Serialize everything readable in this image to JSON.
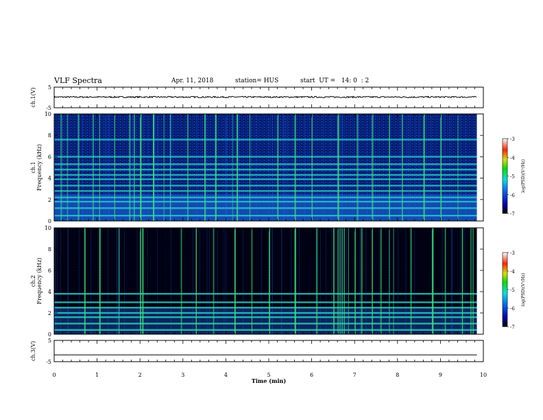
{
  "header": {
    "title": "VLF Spectra",
    "date": "Apr. 11, 2018",
    "station": "station= HUS",
    "start": "start  UT =   14: 0  : 2"
  },
  "chart_data": [
    {
      "type": "line",
      "panel": "ch1-waveform",
      "ylabel": "ch.1(V)",
      "yticks": [
        "5",
        "-5"
      ],
      "ylim": [
        -5,
        5
      ],
      "xlim": [
        0,
        9.85
      ],
      "series": [
        {
          "values_note_mean": 0.2,
          "noise_amplitude": 0.35
        }
      ]
    },
    {
      "type": "heatmap",
      "panel": "ch1-spectrogram",
      "ylabel": "ch.1\nFrequency (kHz)",
      "ylabel_line1": "ch.1",
      "ylabel_line2": "Frequency (kHz)",
      "yticks": [
        "0",
        "2",
        "4",
        "6",
        "8",
        "10"
      ],
      "ylim": [
        0,
        10
      ],
      "xlim": [
        0,
        9.85
      ],
      "background_level": "medium",
      "horizontal_bands_khz": [
        0.5,
        1.2,
        1.8,
        2.2,
        2.8,
        3.3,
        3.9,
        4.3,
        4.8,
        5.3,
        6.0,
        7.6
      ],
      "vertical_spikes_min": [
        0.15,
        0.3,
        0.55,
        0.9,
        1.05,
        1.4,
        1.75,
        1.85,
        2.0,
        2.3,
        2.55,
        2.7,
        3.1,
        3.5,
        3.75,
        4.15,
        4.25,
        4.55,
        5.2,
        5.6,
        6.0,
        6.6,
        7.05,
        7.4,
        7.8,
        8.1,
        8.6,
        9.0,
        9.4
      ]
    },
    {
      "type": "heatmap",
      "panel": "ch2-spectrogram",
      "ylabel_line1": "ch.2",
      "ylabel_line2": "Frequency (kHz)",
      "yticks": [
        "0",
        "2",
        "4",
        "6",
        "8",
        "10"
      ],
      "ylim": [
        0,
        10
      ],
      "xlim": [
        0,
        9.85
      ],
      "background_level": "low",
      "horizontal_bands_khz": [
        0.4,
        1.0,
        1.6,
        2.0,
        2.5,
        3.0,
        3.8
      ],
      "vertical_spikes_min": [
        0.7,
        1.05,
        1.5,
        2.0,
        2.05,
        2.95,
        3.3,
        3.7,
        4.2,
        4.6,
        5.0,
        5.6,
        6.1,
        6.5,
        6.6,
        6.65,
        6.7,
        6.75,
        6.85,
        7.0,
        7.15,
        7.4,
        7.6,
        7.8,
        7.9,
        8.3,
        8.8,
        9.1,
        9.5,
        9.7,
        9.75
      ]
    },
    {
      "type": "line",
      "panel": "ch3-waveform",
      "ylabel": "ch.3(V)",
      "yticks": [
        "5",
        "-5"
      ],
      "ylim": [
        -5,
        5
      ],
      "xlim": [
        0,
        9.85
      ],
      "series": [
        {
          "constant": -1.8
        }
      ]
    }
  ],
  "xaxis": {
    "xlabel": "Time  (min)",
    "ticks": [
      "0",
      "1",
      "2",
      "3",
      "4",
      "5",
      "6",
      "7",
      "8",
      "9",
      "10"
    ],
    "xlim": [
      0,
      10
    ]
  },
  "colorbar": {
    "label": "log(PSD)(V²/Hz)",
    "ticks": [
      "-3",
      "-4",
      "-5",
      "-6",
      "-7"
    ],
    "range": [
      -7,
      -3
    ]
  },
  "colors": {
    "background": "#00001a",
    "band": "#2fd6c8",
    "spike": "#3be07a"
  }
}
